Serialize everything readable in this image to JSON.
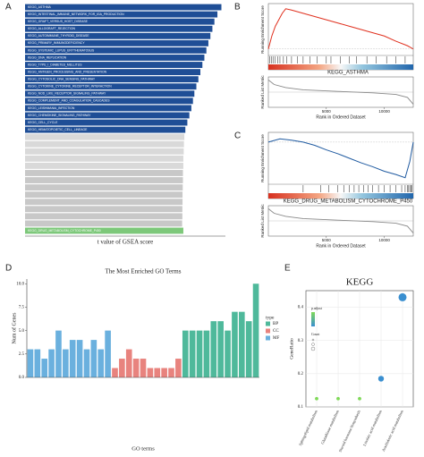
{
  "chart_data": [
    {
      "type": "barh",
      "panel": "A",
      "xlabel": "t value of GSEA score",
      "categories": [
        "KEGG_ASTHMA",
        "KEGG_INTESTINAL_IMMUNE_NETWORK_FOR_IGA_PRODUCTION",
        "KEGG_GRAFT_VERSUS_HOST_DISEASE",
        "KEGG_ALLOGRAFT_REJECTION",
        "KEGG_AUTOIMMUNE_THYROID_DISEASE",
        "KEGG_PRIMARY_IMMUNODEFICIENCY",
        "KEGG_SYSTEMIC_LUPUS_ERYTHEMATOSUS",
        "KEGG_DNA_REPLICATION",
        "KEGG_TYPE_I_DIABETES_MELLITUS",
        "KEGG_ANTIGEN_PROCESSING_AND_PRESENTATION",
        "KEGG_CYTOSOLIC_DNA_SENSING_PATHWAY",
        "KEGG_CYTOKINE_CYTOKINE_RECEPTOR_INTERACTION",
        "KEGG_NOD_LIKE_RECEPTOR_SIGNALING_PATHWAY",
        "KEGG_COMPLEMENT_AND_COAGULATION_CASCADES",
        "KEGG_LEISHMANIA_INFECTION",
        "KEGG_CHEMOKINE_SIGNALING_PATHWAY",
        "KEGG_CELL_CYCLE",
        "KEGG_HEMATOPOIETIC_CELL_LINEAGE",
        null,
        null,
        null,
        null,
        null,
        null,
        null,
        null,
        null,
        null,
        null,
        null,
        null,
        "KEGG_DRUG_METABOLISM_CYTOCHROME_P450"
      ],
      "values": [
        9.8,
        9.6,
        9.45,
        9.35,
        9.25,
        9.15,
        9.05,
        8.95,
        8.85,
        8.75,
        8.65,
        8.55,
        8.45,
        8.38,
        8.3,
        8.2,
        8.1,
        8.0,
        7.95,
        7.93,
        7.92,
        7.9,
        7.9,
        7.88,
        7.88,
        7.87,
        7.86,
        7.86,
        7.85,
        7.85,
        7.84,
        7.9
      ],
      "colors": [
        "#1f4e96",
        "#1f4e96",
        "#1f4e96",
        "#1f4e96",
        "#1f4e96",
        "#1f4e96",
        "#1f4e96",
        "#1f4e96",
        "#1f4e96",
        "#1f4e96",
        "#1f4e96",
        "#1f4e96",
        "#1f4e96",
        "#1f4e96",
        "#1f4e96",
        "#1f4e96",
        "#1f4e96",
        "#1f4e96",
        "#d9d9d9",
        "#d9d9d9",
        "#d9d9d9",
        "#d9d9d9",
        "#d9d9d9",
        "#c8c8c8",
        "#c8c8c8",
        "#c8c8c8",
        "#c8c8c8",
        "#c8c8c8",
        "#c8c8c8",
        "#c8c8c8",
        "#c8c8c8",
        "#7dc87a"
      ],
      "xlim": [
        0,
        10
      ]
    },
    {
      "type": "gsea",
      "panel": "B",
      "label": "KEGG_ASTHMA",
      "ylabel": "Running Enrichment Score",
      "ylabel2": "Ranked List Metric",
      "xlabel": "Rank in Ordered Dataset",
      "color": "#e0301e",
      "x": [
        0,
        300,
        600,
        900,
        1200,
        1500,
        2000,
        3000,
        4000,
        5000,
        6000,
        7000,
        8000,
        9000,
        10000,
        11000,
        12000,
        12500
      ],
      "values": [
        0,
        0.2,
        0.35,
        0.45,
        0.55,
        0.62,
        0.6,
        0.55,
        0.5,
        0.45,
        0.4,
        0.35,
        0.3,
        0.25,
        0.2,
        0.12,
        0.05,
        0
      ],
      "hits": [
        100,
        250,
        400,
        600,
        800,
        1000,
        1300,
        1600,
        2000,
        2500,
        3000,
        3600,
        4200,
        5000,
        5400,
        6200,
        7000,
        7600,
        8500,
        9300,
        10200,
        11000,
        11800
      ],
      "metric_x": [
        0,
        500,
        1500,
        3000,
        6000,
        9000,
        11000,
        12000,
        12500
      ],
      "metric": [
        0.8,
        0.5,
        0.3,
        0.15,
        0.05,
        -0.05,
        -0.15,
        -0.35,
        -0.8
      ],
      "xlim": [
        0,
        12500
      ],
      "xticks": [
        5000,
        10000
      ],
      "ylim": [
        -0.1,
        0.7
      ],
      "metric_lim": [
        -1,
        1
      ]
    },
    {
      "type": "gsea",
      "panel": "C",
      "label": "KEGG_DRUG_METABOLISM_CYTOCHROME_P450",
      "ylabel": "Running Enrichment Score",
      "ylabel2": "Ranked List Metric",
      "xlabel": "Rank in Ordered Dataset",
      "color": "#1f5aa0",
      "x": [
        0,
        1000,
        2000,
        3000,
        4000,
        5000,
        6000,
        7000,
        8000,
        9000,
        10000,
        11000,
        11800,
        12200,
        12500
      ],
      "values": [
        0,
        0.05,
        0.03,
        0,
        -0.05,
        -0.12,
        -0.18,
        -0.25,
        -0.32,
        -0.38,
        -0.45,
        -0.5,
        -0.55,
        -0.3,
        0
      ],
      "hits": [
        3000,
        4500,
        5200,
        6000,
        6500,
        7000,
        7400,
        7800,
        8200,
        8600,
        9000,
        9500,
        10000,
        10500,
        11000,
        11500,
        11800,
        12000,
        12100,
        12200,
        12300,
        12400
      ],
      "metric_x": [
        0,
        500,
        1500,
        3000,
        6000,
        9000,
        11000,
        12000,
        12500
      ],
      "metric": [
        0.8,
        0.5,
        0.3,
        0.15,
        0.05,
        -0.05,
        -0.15,
        -0.35,
        -0.8
      ],
      "xlim": [
        0,
        12500
      ],
      "xticks": [
        5000,
        10000
      ],
      "ylim": [
        -0.65,
        0.15
      ],
      "metric_lim": [
        -1,
        1
      ]
    },
    {
      "type": "bar",
      "panel": "D",
      "title": "The Most Enriched GO Terms",
      "xlabel": "GO terms",
      "ylabel": "Num of Genes",
      "legend_title": "type",
      "categories": [
        null,
        null,
        null,
        null,
        null,
        null,
        null,
        null,
        null,
        null,
        null,
        null,
        null,
        null,
        null,
        null,
        null,
        null,
        null,
        null,
        null,
        null,
        null,
        null,
        null,
        null,
        null,
        null,
        null,
        null,
        null,
        null,
        null
      ],
      "series": [
        {
          "name": "BP",
          "color": "#4fb99b",
          "values": [
            null,
            null,
            null,
            null,
            null,
            null,
            null,
            null,
            null,
            null,
            null,
            null,
            null,
            null,
            null,
            null,
            null,
            null,
            null,
            null,
            null,
            null,
            5,
            5,
            5,
            5,
            6,
            6,
            5,
            7,
            7,
            6,
            10
          ]
        },
        {
          "name": "CC",
          "color": "#e8837e",
          "values": [
            null,
            null,
            null,
            null,
            null,
            null,
            null,
            null,
            null,
            null,
            null,
            null,
            1,
            2,
            3,
            2,
            2,
            1,
            1,
            1,
            1,
            2,
            null,
            null,
            null,
            null,
            null,
            null,
            null,
            null,
            null,
            null,
            null
          ]
        },
        {
          "name": "MF",
          "color": "#6ab0de",
          "values": [
            3,
            3,
            2,
            3,
            5,
            3,
            4,
            4,
            3,
            4,
            3,
            5,
            null,
            null,
            null,
            null,
            null,
            null,
            null,
            null,
            null,
            null,
            null,
            null,
            null,
            null,
            null,
            null,
            null,
            null,
            null,
            null,
            null
          ]
        }
      ],
      "ylim": [
        0,
        10.5
      ],
      "yticks": [
        {
          "value": 0,
          "label": "0.0"
        },
        {
          "value": 2.5,
          "label": "2.5"
        },
        {
          "value": 5,
          "label": "5.0"
        },
        {
          "value": 7.5,
          "label": "7.5"
        },
        {
          "value": 10,
          "label": "10.0"
        }
      ]
    },
    {
      "type": "dot",
      "panel": "E",
      "title": "KEGG",
      "ylabel": "GeneRatio",
      "legend_color_title": "p.adjust",
      "legend_size_title": "Count",
      "categories": [
        "Sphingolipid metabolism",
        "Glutathione metabolism",
        "Steroid hormone biosynthesis",
        "Linoleic acid metabolism",
        "Arachidonic acid metabolism"
      ],
      "values": [
        0.125,
        0.125,
        0.125,
        0.185,
        0.43
      ],
      "sizes": [
        1,
        1,
        1,
        2,
        3
      ],
      "colors": [
        "#7ed957",
        "#7ed957",
        "#7ed957",
        "#3a8fd0",
        "#3a8fd0"
      ],
      "ylim": [
        0.1,
        0.45
      ],
      "yticks": [
        0.1,
        0.2,
        0.3,
        0.4
      ],
      "grid": true
    }
  ]
}
